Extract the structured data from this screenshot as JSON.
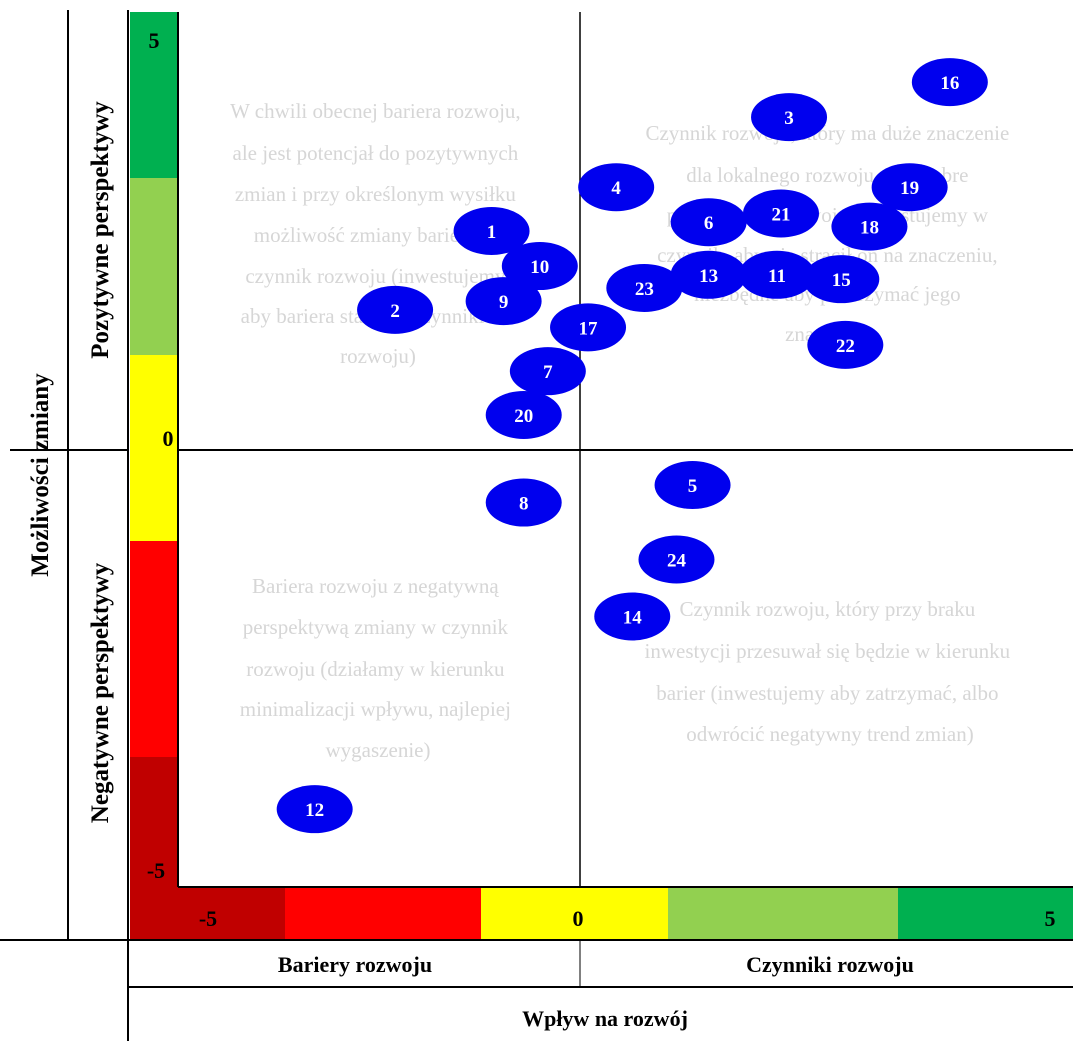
{
  "labels": {
    "y_axis_title": "Możliwości zmiany",
    "positive": "Pozytywne perspektywy",
    "negative": "Negatywne perspektywy",
    "barriers": "Bariery rozwoju",
    "factors": "Czynniki rozwoju",
    "x_axis_title": "Wpływ na rozwój"
  },
  "colors": {
    "bubble": "#0000ee",
    "dark_green": "#00b050",
    "light_green": "#92d050",
    "yellow": "#ffff00",
    "red": "#ff0000",
    "dark_red": "#c00000",
    "quadrant_text": "#d6d6d6"
  },
  "scale_labels": {
    "y_top": "5",
    "y_mid": "0",
    "y_bottom": "-5",
    "x_left": "-5",
    "x_mid": "0",
    "x_right": "5"
  },
  "quadrants": {
    "top_left": [
      "W chwili obecnej bariera rozwoju,",
      "ale jest potencjał do pozytywnych",
      "zmian i przy określonym wysiłku",
      "możliwość zmiany bariery w",
      "czynnik rozwoju (inwestujemy",
      "aby bariera stała się czynnikiem",
      "rozwoju)"
    ],
    "top_right": [
      "Czynnik rozwoju, który ma duże znaczenie",
      "dla lokalnego rozwoju oraz dobre",
      "perspektywy rozwoju (inwestujemy w",
      "czynnik, aby nie stracił on na znaczeniu,",
      "niezbędne aby podtrzymać jego",
      "znaczenie)"
    ],
    "bottom_left": [
      "Bariera rozwoju z negatywną",
      "perspektywą zmiany w czynnik",
      "rozwoju (działamy w kierunku",
      "minimalizacji wpływu, najlepiej",
      "wygaszenie)"
    ],
    "bottom_right": [
      "Czynnik rozwoju, który przy braku",
      "inwestycji przesuwał się będzie w kierunku",
      "barier (inwestujemy aby zatrzymać, albo",
      "odwrócić negatywny trend zmian)"
    ]
  },
  "chart_data": {
    "type": "scatter",
    "xlabel": "Wpływ na rozwój",
    "ylabel": "Możliwości zmiany",
    "xlim": [
      -5,
      5.5
    ],
    "ylim": [
      -5,
      5
    ],
    "points": [
      {
        "label": "1",
        "x": -1.1,
        "y": 2.5
      },
      {
        "label": "2",
        "x": -2.3,
        "y": 1.6
      },
      {
        "label": "3",
        "x": 2.6,
        "y": 3.8
      },
      {
        "label": "4",
        "x": 0.45,
        "y": 3.0
      },
      {
        "label": "5",
        "x": 1.4,
        "y": -0.4
      },
      {
        "label": "6",
        "x": 1.6,
        "y": 2.6
      },
      {
        "label": "7",
        "x": -0.4,
        "y": 0.9
      },
      {
        "label": "8",
        "x": -0.7,
        "y": -0.6
      },
      {
        "label": "9",
        "x": -0.95,
        "y": 1.7
      },
      {
        "label": "10",
        "x": -0.5,
        "y": 2.1
      },
      {
        "label": "11",
        "x": 2.45,
        "y": 2.0
      },
      {
        "label": "12",
        "x": -3.3,
        "y": -4.1
      },
      {
        "label": "13",
        "x": 1.6,
        "y": 2.0
      },
      {
        "label": "14",
        "x": 0.65,
        "y": -1.9
      },
      {
        "label": "15",
        "x": 3.25,
        "y": 1.95
      },
      {
        "label": "16",
        "x": 4.6,
        "y": 4.2
      },
      {
        "label": "17",
        "x": 0.1,
        "y": 1.4
      },
      {
        "label": "18",
        "x": 3.6,
        "y": 2.55
      },
      {
        "label": "19",
        "x": 4.1,
        "y": 3.0
      },
      {
        "label": "20",
        "x": -0.7,
        "y": 0.4
      },
      {
        "label": "21",
        "x": 2.5,
        "y": 2.7
      },
      {
        "label": "22",
        "x": 3.3,
        "y": 1.2
      },
      {
        "label": "23",
        "x": 0.8,
        "y": 1.85
      },
      {
        "label": "24",
        "x": 1.2,
        "y": -1.25
      }
    ]
  }
}
